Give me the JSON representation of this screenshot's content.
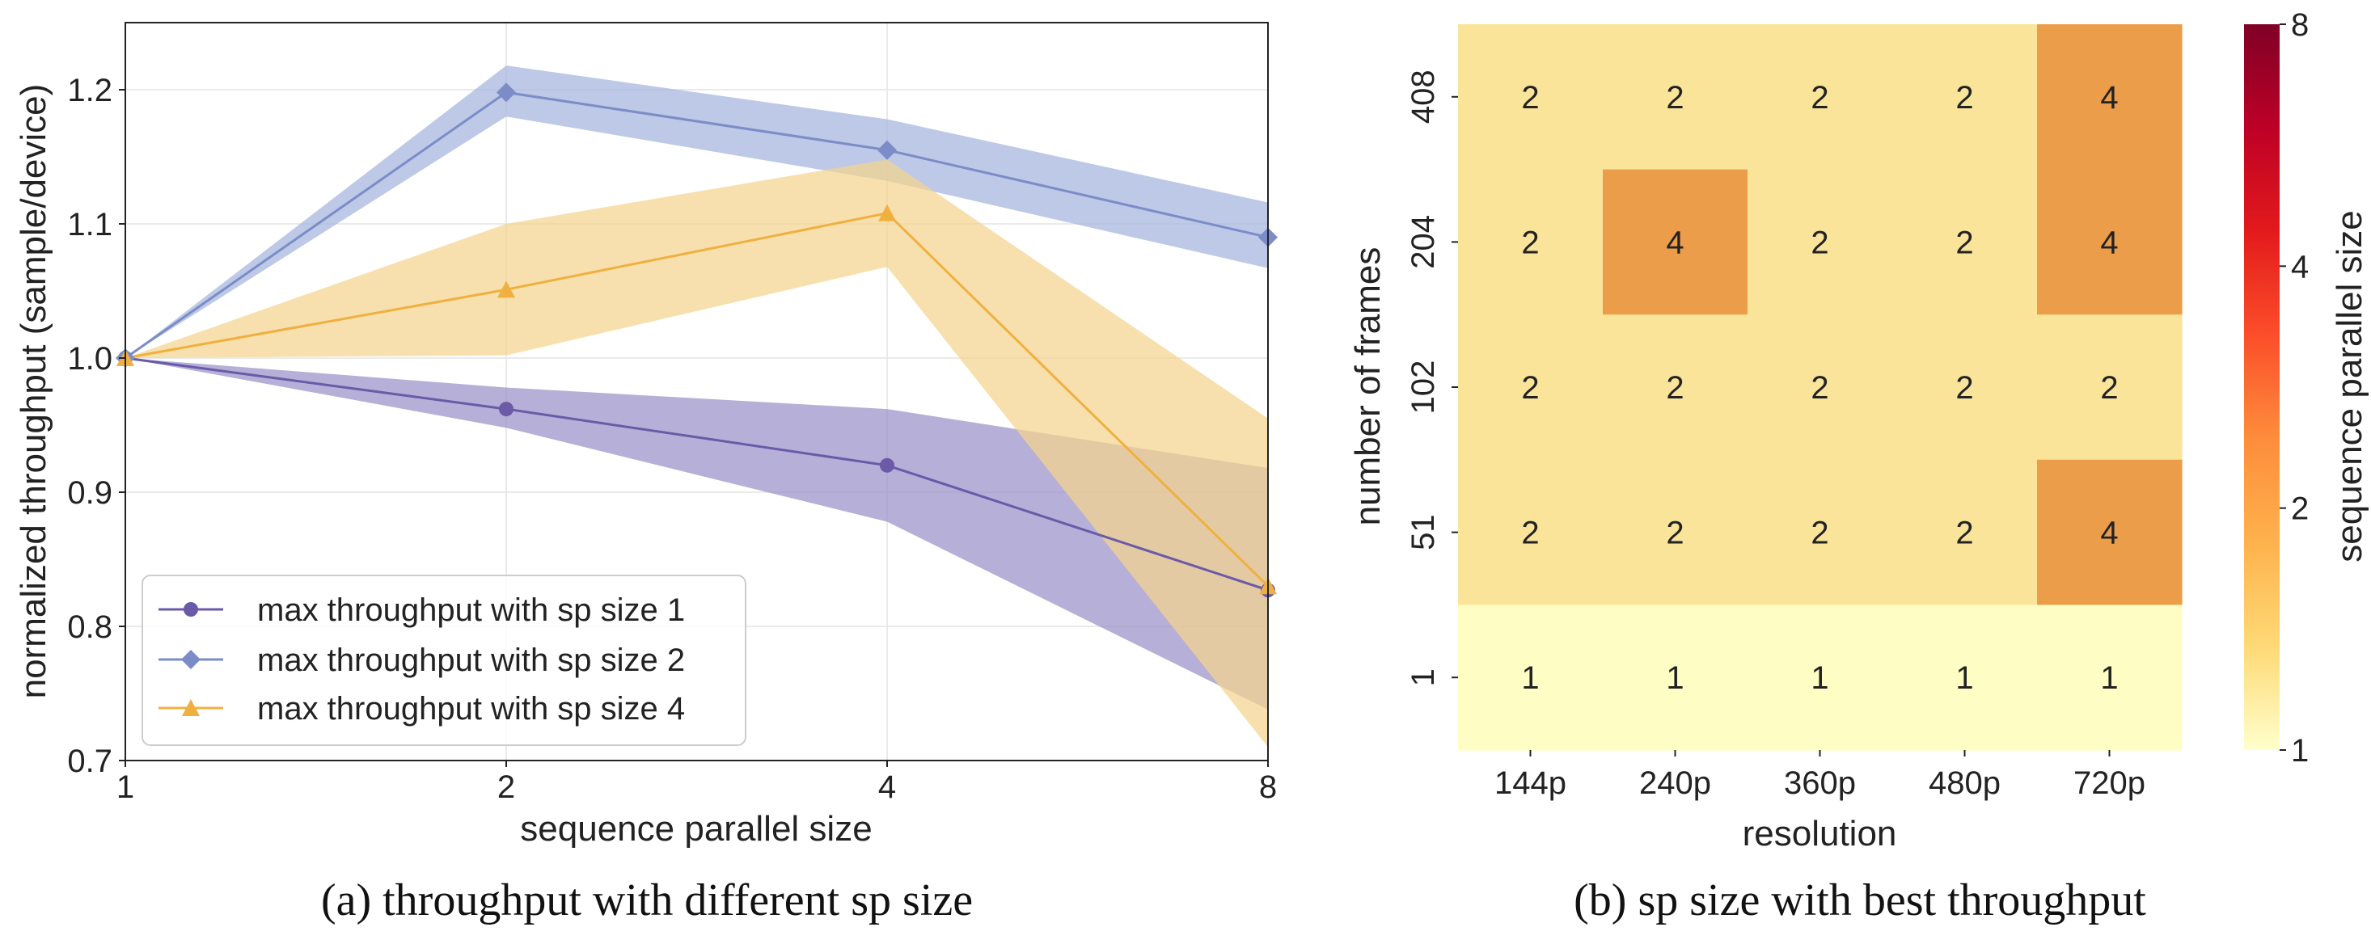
{
  "chart_data": [
    {
      "type": "line",
      "caption": "(a) throughput with different sp size",
      "xlabel": "sequence parallel size",
      "ylabel": "normalized throughput (sample/device)",
      "x": [
        1,
        2,
        4,
        8
      ],
      "x_tick_labels": [
        "1",
        "2",
        "4",
        "8"
      ],
      "x_scale": "log2",
      "ylim": [
        0.7,
        1.25
      ],
      "y_ticks": [
        0.7,
        0.8,
        0.9,
        1.0,
        1.1,
        1.2
      ],
      "y_tick_labels": [
        "0.7",
        "0.8",
        "0.9",
        "1.0",
        "1.1",
        "1.2"
      ],
      "grid": true,
      "legend_position": "lower-left",
      "series": [
        {
          "name": "max throughput with sp size 1",
          "color": "#6a5aa8",
          "band_color": "#9a90c8",
          "marker": "circle",
          "values": [
            1.0,
            0.962,
            0.92,
            0.827
          ],
          "band_low": [
            1.0,
            0.948,
            0.878,
            0.738
          ],
          "band_high": [
            1.0,
            0.978,
            0.962,
            0.918
          ]
        },
        {
          "name": "max throughput with sp size 2",
          "color": "#7b8cc8",
          "band_color": "#a4b4dc",
          "marker": "diamond",
          "values": [
            1.0,
            1.198,
            1.155,
            1.09
          ],
          "band_low": [
            1.0,
            1.18,
            1.132,
            1.067
          ],
          "band_high": [
            1.0,
            1.218,
            1.178,
            1.116
          ]
        },
        {
          "name": "max throughput with sp size 4",
          "color": "#f0b040",
          "band_color": "#f4d48e",
          "marker": "triangle",
          "values": [
            1.0,
            1.051,
            1.108,
            0.83
          ],
          "band_low": [
            1.0,
            1.002,
            1.068,
            0.71
          ],
          "band_high": [
            1.0,
            1.1,
            1.148,
            0.955
          ]
        }
      ]
    },
    {
      "type": "heatmap",
      "caption": "(b) sp size with best throughput",
      "xlabel": "resolution",
      "ylabel": "number of frames",
      "x_categories": [
        "144p",
        "240p",
        "360p",
        "480p",
        "720p"
      ],
      "y_categories": [
        "408",
        "204",
        "102",
        "51",
        "1"
      ],
      "values": [
        [
          2,
          2,
          2,
          2,
          4
        ],
        [
          2,
          4,
          2,
          2,
          4
        ],
        [
          2,
          2,
          2,
          2,
          2
        ],
        [
          2,
          2,
          2,
          2,
          4
        ],
        [
          1,
          1,
          1,
          1,
          1
        ]
      ],
      "cell_labels": [
        [
          "2",
          "2",
          "2",
          "2",
          "4"
        ],
        [
          "2",
          "4",
          "2",
          "2",
          "4"
        ],
        [
          "2",
          "2",
          "2",
          "2",
          "2"
        ],
        [
          "2",
          "2",
          "2",
          "2",
          "4"
        ],
        [
          "1",
          "1",
          "1",
          "1",
          "1"
        ]
      ],
      "colormap": "YlOrRd",
      "color_scale": "log2",
      "value_colors": {
        "1": "#fefdc4",
        "2": "#f9e49a",
        "4": "#ec9d4a"
      },
      "colorbar": {
        "label": "sequence parallel size",
        "ticks": [
          1,
          2,
          4,
          8
        ],
        "tick_labels": [
          "1",
          "2",
          "4",
          "8"
        ],
        "stops": [
          "#ffffcc",
          "#fed976",
          "#feb24c",
          "#fd8d3c",
          "#fc4e2a",
          "#e31a1c",
          "#bd0026",
          "#800026"
        ]
      }
    }
  ]
}
